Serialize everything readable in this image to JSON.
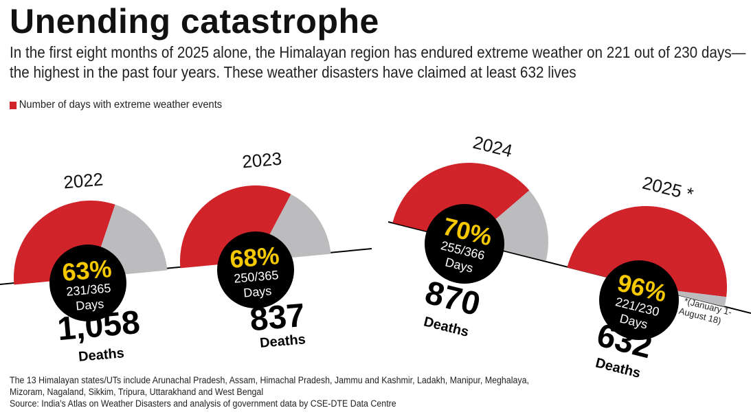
{
  "title": "Unending catastrophe",
  "subtitle": "In the first eight months of 2025 alone, the Himalayan region has endured extreme weather on 221 out of 230 days—the highest in the past four years. These weather disasters have claimed at least 632 lives",
  "legend": "Number of days with extreme weather events",
  "colors": {
    "extreme": "#d0232a",
    "rest": "#bcbcbe",
    "center": "#000000",
    "percent": "#f5c800"
  },
  "chart_data": {
    "type": "gauge",
    "series": [
      {
        "year": "2022",
        "percent": "63%",
        "days": 231,
        "total": 365,
        "days_label": "231/365",
        "unit": "Days",
        "deaths": "1,058",
        "deaths_label": "Deaths"
      },
      {
        "year": "2023",
        "percent": "68%",
        "days": 250,
        "total": 365,
        "days_label": "250/365",
        "unit": "Days",
        "deaths": "837",
        "deaths_label": "Deaths"
      },
      {
        "year": "2024",
        "percent": "70%",
        "days": 255,
        "total": 366,
        "days_label": "255/366",
        "unit": "Days",
        "deaths": "870",
        "deaths_label": "Deaths"
      },
      {
        "year": "2025 *",
        "percent": "96%",
        "days": 221,
        "total": 230,
        "days_label": "221/230",
        "unit": "Days",
        "deaths": "632",
        "deaths_label": "Deaths"
      }
    ],
    "footnote_line1": "*(January 1-",
    "footnote_line2": "August 18)"
  },
  "notes": {
    "states": "The 13 Himalayan states/UTs include Arunachal Pradesh, Assam, Himachal Pradesh, Jammu and Kashmir, Ladakh, Manipur, Meghalaya, Mizoram, Nagaland, Sikkim, Tripura, Uttarakhand and West Bengal",
    "source": "Source: India's Atlas on Weather Disasters and analysis of government data by CSE-DTE Data Centre"
  }
}
